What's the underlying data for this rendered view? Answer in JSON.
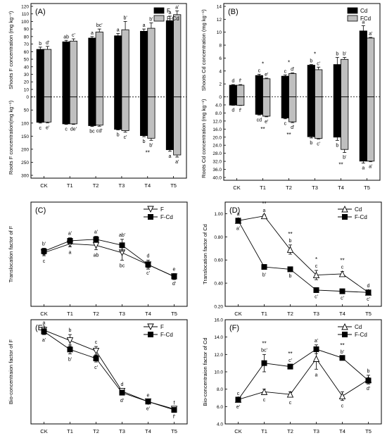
{
  "chart_data": [
    {
      "panel": "(A)",
      "type": "bar",
      "categories": [
        "CK",
        "T1",
        "T2",
        "T3",
        "T4",
        "T5"
      ],
      "series": [
        {
          "name": "F",
          "color": "#000000",
          "shoots": [
            63,
            73,
            78,
            81,
            87,
            101
          ],
          "shoots_err": [
            3,
            2,
            2,
            3,
            3,
            6
          ],
          "roots": [
            97,
            103,
            110,
            124,
            148,
            202
          ],
          "roots_err": [
            3,
            2,
            3,
            2,
            4,
            6
          ],
          "shoot_labels": [
            "b",
            "ab",
            "a",
            "a",
            "a",
            "a"
          ],
          "root_labels": [
            "c",
            "c",
            "bc",
            "b",
            "b",
            "a"
          ]
        },
        {
          "name": "F-Cd",
          "color": "#bfbfbf",
          "shoots": [
            63,
            74,
            86,
            89,
            91,
            109
          ],
          "shoots_err": [
            4,
            3,
            4,
            11,
            7,
            5
          ],
          "roots": [
            96,
            103,
            108,
            129,
            158,
            222
          ],
          "roots_err": [
            3,
            2,
            4,
            6,
            8,
            8
          ],
          "shoot_labels": [
            "d'",
            "c'",
            "bc'",
            "b'",
            "b'",
            "a'"
          ],
          "root_labels": [
            "e'",
            "de'",
            "cd'",
            "c'",
            "b'",
            "a'"
          ]
        }
      ],
      "stars": [
        {
          "category": "T4",
          "side": "roots",
          "text": "**"
        }
      ],
      "ylabel_top": "Shoots F concentration (mg kg⁻¹)",
      "ylabel_bottom": "Roots F concentration(mg kg⁻¹)",
      "top_ticks": [
        "0",
        "10",
        "20",
        "30",
        "40",
        "50",
        "60",
        "70",
        "80",
        "90",
        "100",
        "110",
        "120"
      ],
      "bottom_ticks": [
        "0",
        "50",
        "100",
        "150",
        "200",
        "250",
        "300"
      ],
      "top_range": [
        0,
        120
      ],
      "bottom_range": [
        0,
        300
      ]
    },
    {
      "panel": "(B)",
      "type": "bar",
      "categories": [
        "CK",
        "T1",
        "T2",
        "T3",
        "T4",
        "T5"
      ],
      "series": [
        {
          "name": "Cd",
          "color": "#000000",
          "shoots": [
            1.8,
            3.3,
            3.2,
            4.9,
            5.0,
            10.2
          ],
          "shoots_err": [
            0.1,
            0.2,
            0.2,
            0.1,
            1.1,
            0.8
          ],
          "roots": [
            4.1,
            8.7,
            10.5,
            19.8,
            20.0,
            31.9
          ],
          "roots_err": [
            0.1,
            0.3,
            0.4,
            0.6,
            1.6,
            1.0
          ],
          "shoot_labels": [
            "d",
            "c",
            "c",
            "b",
            "b",
            "a"
          ],
          "root_labels": [
            "d",
            "cd",
            "c",
            "b",
            "b",
            "a"
          ]
        },
        {
          "name": "FCd",
          "color": "#bfbfbf",
          "shoots": [
            1.8,
            2.8,
            3.6,
            4.2,
            5.8,
            9.1
          ],
          "shoots_err": [
            0.1,
            0.1,
            0.1,
            0.4,
            0.3,
            0.1
          ],
          "roots": [
            4.2,
            9.6,
            12.4,
            20.6,
            26.1,
            31.9
          ],
          "roots_err": [
            0.1,
            0.3,
            0.4,
            0.3,
            1.5,
            0.3
          ],
          "shoot_labels": [
            "f'",
            "e'",
            "d'",
            "c'",
            "b'",
            "a'"
          ],
          "root_labels": [
            "f'",
            "e'",
            "d'",
            "c'",
            "b'",
            "a'"
          ]
        }
      ],
      "stars": [
        {
          "category": "T1",
          "side": "shoots",
          "text": "*"
        },
        {
          "category": "T2",
          "side": "shoots",
          "text": "*"
        },
        {
          "category": "T3",
          "side": "shoots",
          "text": "*"
        },
        {
          "category": "T1",
          "side": "roots",
          "text": "**"
        },
        {
          "category": "T2",
          "side": "roots",
          "text": "**"
        },
        {
          "category": "T4",
          "side": "roots",
          "text": "**"
        }
      ],
      "ylabel_top": "Shoots Cd concentration (mg kg⁻¹)",
      "ylabel_bottom": "Roots Cd concentration (mg kg⁻¹)",
      "top_ticks": [
        "0",
        "2",
        "4",
        "6",
        "8",
        "10",
        "12",
        "14"
      ],
      "bottom_ticks": [
        "0",
        "4.0",
        "8.0",
        "12.0",
        "16.0",
        "20.0",
        "24.0",
        "28.0",
        "32.0",
        "36.0",
        "40.0"
      ],
      "top_range": [
        0,
        14
      ],
      "bottom_range": [
        0,
        40
      ]
    },
    {
      "panel": "(C)",
      "type": "line",
      "categories": [
        "CK",
        "T1",
        "T2",
        "T3",
        "T4",
        "T5"
      ],
      "ylabel": "Translocation factor of F",
      "ylim": [
        0.3,
        1.0
      ],
      "yticks": [],
      "series": [
        {
          "name": "F",
          "marker": "triangle-down-open",
          "values": [
            0.66,
            0.72,
            0.71,
            0.66,
            0.58,
            0.5
          ],
          "err": [
            0.02,
            0.02,
            0.03,
            0.05,
            0.03,
            0.02
          ],
          "labels": [
            "c",
            "a",
            "ab",
            "bc",
            "d",
            "e"
          ]
        },
        {
          "name": "F-Cd",
          "marker": "square-filled",
          "values": [
            0.67,
            0.74,
            0.75,
            0.71,
            0.58,
            0.5
          ],
          "err": [
            0.02,
            0.02,
            0.02,
            0.04,
            0.02,
            0.01
          ],
          "labels": [
            "b'",
            "a'",
            "a'",
            "ab'",
            "c'",
            "d'"
          ]
        }
      ]
    },
    {
      "panel": "(D)",
      "type": "line",
      "categories": [
        "CK",
        "T1",
        "T2",
        "T3",
        "T4",
        "T5"
      ],
      "ylabel": "Translocation factor of Cd",
      "ylim": [
        0.2,
        1.1
      ],
      "yticks": [
        "0.20",
        "0.40",
        "0.60",
        "0.80",
        "1.00"
      ],
      "series": [
        {
          "name": "Cd",
          "marker": "triangle-up-open",
          "values": [
            0.94,
            0.98,
            0.69,
            0.47,
            0.48,
            0.32
          ],
          "err": [
            0.02,
            0.01,
            0.04,
            0.04,
            0.02,
            0.02
          ],
          "labels": [
            "a",
            "a",
            "b",
            "c",
            "c",
            "d"
          ]
        },
        {
          "name": "F-Cd",
          "marker": "square-filled",
          "values": [
            0.94,
            0.54,
            0.52,
            0.34,
            0.33,
            0.32
          ],
          "err": [
            0.02,
            0.02,
            0.01,
            0.01,
            0.01,
            0.01
          ],
          "labels": [
            "a'",
            "b'",
            "b",
            "c'",
            "c'",
            "c'"
          ]
        }
      ],
      "stars": [
        {
          "category": "T1",
          "text": "**"
        },
        {
          "category": "T2",
          "text": "**"
        },
        {
          "category": "T3",
          "text": "*"
        },
        {
          "category": "T4",
          "text": "**"
        }
      ]
    },
    {
      "panel": "(E)",
      "type": "line",
      "categories": [
        "CK",
        "T1",
        "T2",
        "T3",
        "T4",
        "T5"
      ],
      "ylabel": "Bio-concentraion factor of F",
      "ylim": [
        0,
        35
      ],
      "yticks": [],
      "series": [
        {
          "name": "F",
          "marker": "triangle-down-open",
          "values": [
            31.5,
            28.0,
            24.5,
            11.0,
            7.5,
            5.0
          ],
          "err": [
            1.0,
            2.0,
            1.5,
            0.8,
            0.6,
            0.5
          ],
          "labels": [
            "a",
            "b",
            "c",
            "d",
            "e",
            "f"
          ]
        },
        {
          "name": "F-Cd",
          "marker": "square-filled",
          "values": [
            31.0,
            25.0,
            22.0,
            10.5,
            7.5,
            4.7
          ],
          "err": [
            1.0,
            1.5,
            1.2,
            0.8,
            0.5,
            0.5
          ],
          "labels": [
            "a'",
            "b'",
            "c'",
            "d'",
            "e'",
            "f'"
          ]
        }
      ]
    },
    {
      "panel": "(F)",
      "type": "line",
      "categories": [
        "CK",
        "T1",
        "T2",
        "T3",
        "T4",
        "T5"
      ],
      "ylabel": "Bio-concentraion factor of Cd",
      "ylim": [
        4.0,
        16.0
      ],
      "yticks": [
        "4.0",
        "6.0",
        "8.0",
        "10.0",
        "12.0",
        "14.0",
        "16.0"
      ],
      "series": [
        {
          "name": "Cd",
          "marker": "triangle-up-open",
          "values": [
            6.8,
            7.7,
            7.4,
            11.5,
            7.2,
            9.1
          ],
          "err": [
            0.2,
            0.3,
            0.3,
            1.2,
            0.5,
            0.5
          ],
          "labels": [
            "c",
            "c",
            "c",
            "a",
            "c",
            "b"
          ]
        },
        {
          "name": "F-Cd",
          "marker": "square-filled",
          "values": [
            6.8,
            11.0,
            10.6,
            12.6,
            11.6,
            9.0
          ],
          "err": [
            0.2,
            1.0,
            0.2,
            0.5,
            0.2,
            0.3
          ],
          "labels": [
            "e'",
            "bc'",
            "c'",
            "a'",
            "b'",
            "d'"
          ]
        }
      ],
      "stars": [
        {
          "category": "T1",
          "text": "**"
        },
        {
          "category": "T2",
          "text": "**"
        },
        {
          "category": "T4",
          "text": "**"
        }
      ]
    }
  ]
}
